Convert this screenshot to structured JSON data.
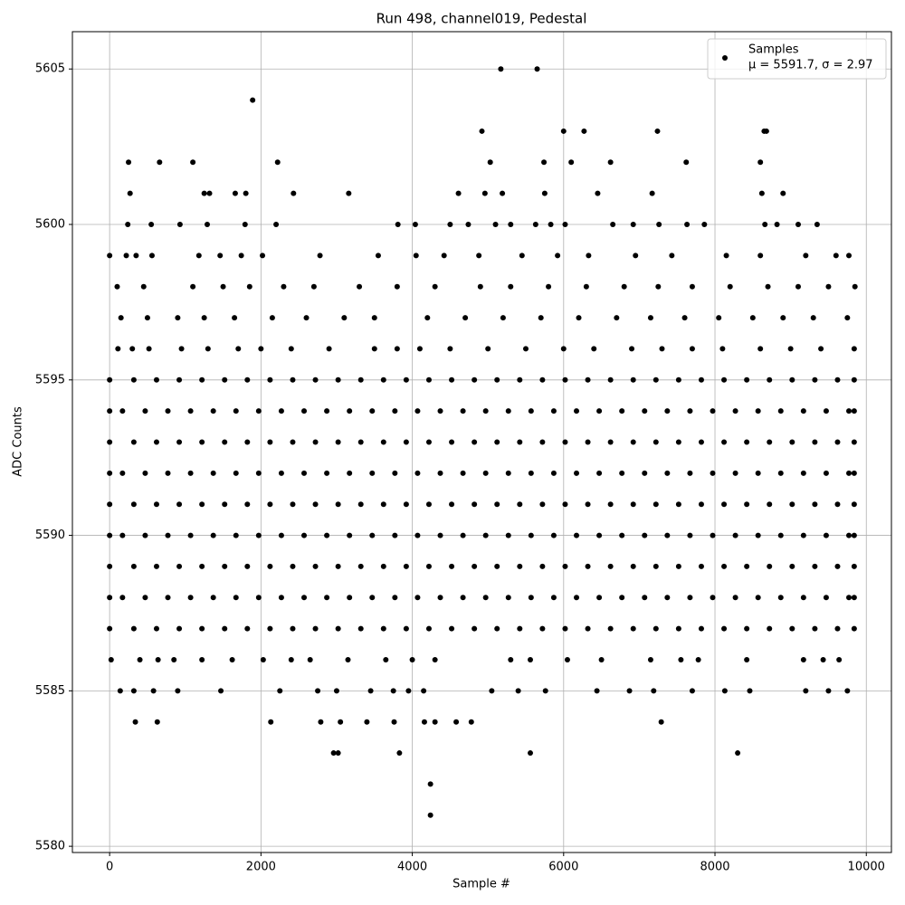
{
  "chart_data": {
    "type": "scatter",
    "title": "Run 498, channel019, Pedestal",
    "xlabel": "Sample #",
    "ylabel": "ADC Counts",
    "xlim": [
      -492,
      10332
    ],
    "ylim": [
      5579.8,
      5606.2
    ],
    "xticks": [
      0,
      2000,
      4000,
      6000,
      8000,
      10000
    ],
    "yticks": [
      5580,
      5585,
      5590,
      5595,
      5600,
      5605
    ],
    "grid": true,
    "legend": "upper right",
    "series": [
      {
        "name": "Samples",
        "stats": "μ = 5591.7, σ = 2.97",
        "color": "#000000",
        "x": [
          0,
          320,
          620,
          920,
          1220,
          1520,
          1820,
          2120,
          2420,
          2720,
          3020,
          3320,
          3620,
          3920,
          4220,
          4520,
          4820,
          5120,
          5420,
          5720,
          6020,
          6320,
          6620,
          6920,
          7220,
          7520,
          7820,
          8120,
          8420,
          8720,
          9020,
          9320,
          9620,
          9840,
          0,
          170,
          470,
          770,
          1070,
          1370,
          1670,
          1970,
          2270,
          2570,
          2870,
          3170,
          3470,
          3770,
          4070,
          4370,
          4670,
          4970,
          5270,
          5570,
          5870,
          6170,
          6470,
          6770,
          7070,
          7370,
          7670,
          7970,
          8270,
          8570,
          8870,
          9170,
          9470,
          9770,
          9840,
          0,
          320,
          620,
          920,
          1220,
          1520,
          1820,
          2120,
          2420,
          2720,
          3020,
          3320,
          3620,
          3920,
          4220,
          4520,
          4820,
          5120,
          5420,
          5720,
          6020,
          6320,
          6620,
          6920,
          7220,
          7520,
          7820,
          8120,
          8420,
          8720,
          9020,
          9320,
          9620,
          9840,
          0,
          170,
          470,
          770,
          1070,
          1370,
          1670,
          1970,
          2270,
          2570,
          2870,
          3170,
          3470,
          3770,
          4070,
          4370,
          4670,
          4970,
          5270,
          5570,
          5870,
          6170,
          6470,
          6770,
          7070,
          7370,
          7670,
          7970,
          8270,
          8570,
          8870,
          9170,
          9470,
          9770,
          9840,
          0,
          320,
          620,
          920,
          1220,
          1520,
          1820,
          2120,
          2420,
          2720,
          3020,
          3320,
          3620,
          3920,
          4220,
          4520,
          4820,
          5120,
          5420,
          5720,
          6020,
          6320,
          6620,
          6920,
          7220,
          7520,
          7820,
          8120,
          8420,
          8720,
          9020,
          9320,
          9620,
          9840,
          0,
          170,
          470,
          770,
          1070,
          1370,
          1670,
          1970,
          2270,
          2570,
          2870,
          3170,
          3470,
          3770,
          4070,
          4370,
          4670,
          4970,
          5270,
          5570,
          5870,
          6170,
          6470,
          6770,
          7070,
          7370,
          7670,
          7970,
          8270,
          8570,
          8870,
          9170,
          9470,
          9770,
          9840,
          0,
          320,
          620,
          920,
          1220,
          1520,
          1820,
          2120,
          2420,
          2720,
          3020,
          3320,
          3620,
          3920,
          4220,
          4520,
          4820,
          5120,
          5420,
          5720,
          6020,
          6320,
          6620,
          6920,
          7220,
          7520,
          7820,
          8120,
          8420,
          8720,
          9020,
          9320,
          9620,
          9840,
          0,
          170,
          470,
          770,
          1070,
          1370,
          1670,
          1970,
          2270,
          2570,
          2870,
          3170,
          3470,
          3770,
          4070,
          4370,
          4670,
          4970,
          5270,
          5570,
          5870,
          6170,
          6470,
          6770,
          7070,
          7370,
          7670,
          7970,
          8270,
          8570,
          8870,
          9170,
          9470,
          9770,
          9840,
          0,
          320,
          620,
          920,
          1220,
          1520,
          1820,
          2120,
          2420,
          2720,
          3020,
          3320,
          3620,
          3920,
          4220,
          4520,
          4820,
          5120,
          5420,
          5720,
          6020,
          6320,
          6620,
          6920,
          7220,
          7520,
          7820,
          8120,
          8420,
          8720,
          9020,
          9320,
          9620,
          9840,
          110,
          300,
          520,
          950,
          1300,
          1700,
          2000,
          2400,
          2900,
          3500,
          3800,
          4100,
          4500,
          5000,
          5500,
          6000,
          6400,
          6900,
          7300,
          7700,
          8100,
          8600,
          9000,
          9400,
          9840,
          150,
          500,
          900,
          1250,
          1650,
          2150,
          2600,
          3100,
          3500,
          4200,
          4700,
          5200,
          5700,
          6200,
          6700,
          7150,
          7600,
          8050,
          8500,
          8900,
          9300,
          9750,
          100,
          450,
          1100,
          1500,
          1850,
          2300,
          2700,
          3300,
          3800,
          4300,
          4900,
          5300,
          5800,
          6300,
          6800,
          7250,
          7700,
          8200,
          8700,
          9100,
          9500,
          9850,
          0,
          220,
          350,
          560,
          1180,
          1460,
          1740,
          2020,
          2780,
          3550,
          4050,
          4420,
          4880,
          5450,
          5920,
          6330,
          6950,
          7430,
          8150,
          8600,
          9200,
          9600,
          9770,
          240,
          550,
          930,
          1290,
          1790,
          2200,
          3810,
          4040,
          4500,
          4740,
          5100,
          5300,
          5630,
          5830,
          6020,
          6650,
          6920,
          7260,
          7630,
          7860,
          8660,
          8820,
          9100,
          9350,
          20,
          400,
          640,
          850,
          1220,
          1620,
          2030,
          2400,
          2650,
          3150,
          3650,
          4000,
          4300,
          5300,
          5560,
          6050,
          6500,
          7150,
          7550,
          7780,
          8420,
          9170,
          9430,
          9640,
          140,
          320,
          580,
          900,
          1470,
          2250,
          2750,
          3000,
          3450,
          3750,
          3950,
          4150,
          5050,
          5400,
          5760,
          6440,
          6870,
          7190,
          7700,
          8130,
          8460,
          9200,
          9500,
          9750,
          250,
          270,
          660,
          1100,
          1890,
          2220,
          5170,
          5650,
          4920,
          6000,
          6270,
          7240,
          8650,
          8680,
          4240,
          4240,
          3830,
          2960,
          3020,
          5560,
          8300,
          340,
          630,
          2130,
          2790,
          3050,
          3400,
          3760,
          4160,
          4300,
          4580,
          4780,
          7290,
          5030,
          5740,
          6100,
          6620,
          7620,
          8600,
          1250,
          1320,
          1660,
          1800,
          2430,
          3160,
          4610,
          4960,
          5190,
          5750,
          6450,
          7170,
          8620,
          8900
        ],
        "values": [
          5595,
          5595,
          5595,
          5595,
          5595,
          5595,
          5595,
          5595,
          5595,
          5595,
          5595,
          5595,
          5595,
          5595,
          5595,
          5595,
          5595,
          5595,
          5595,
          5595,
          5595,
          5595,
          5595,
          5595,
          5595,
          5595,
          5595,
          5595,
          5595,
          5595,
          5595,
          5595,
          5595,
          5595,
          5594,
          5594,
          5594,
          5594,
          5594,
          5594,
          5594,
          5594,
          5594,
          5594,
          5594,
          5594,
          5594,
          5594,
          5594,
          5594,
          5594,
          5594,
          5594,
          5594,
          5594,
          5594,
          5594,
          5594,
          5594,
          5594,
          5594,
          5594,
          5594,
          5594,
          5594,
          5594,
          5594,
          5594,
          5594,
          5593,
          5593,
          5593,
          5593,
          5593,
          5593,
          5593,
          5593,
          5593,
          5593,
          5593,
          5593,
          5593,
          5593,
          5593,
          5593,
          5593,
          5593,
          5593,
          5593,
          5593,
          5593,
          5593,
          5593,
          5593,
          5593,
          5593,
          5593,
          5593,
          5593,
          5593,
          5593,
          5593,
          5593,
          5592,
          5592,
          5592,
          5592,
          5592,
          5592,
          5592,
          5592,
          5592,
          5592,
          5592,
          5592,
          5592,
          5592,
          5592,
          5592,
          5592,
          5592,
          5592,
          5592,
          5592,
          5592,
          5592,
          5592,
          5592,
          5592,
          5592,
          5592,
          5592,
          5592,
          5592,
          5592,
          5592,
          5592,
          5592,
          5591,
          5591,
          5591,
          5591,
          5591,
          5591,
          5591,
          5591,
          5591,
          5591,
          5591,
          5591,
          5591,
          5591,
          5591,
          5591,
          5591,
          5591,
          5591,
          5591,
          5591,
          5591,
          5591,
          5591,
          5591,
          5591,
          5591,
          5591,
          5591,
          5591,
          5591,
          5591,
          5591,
          5591,
          5590,
          5590,
          5590,
          5590,
          5590,
          5590,
          5590,
          5590,
          5590,
          5590,
          5590,
          5590,
          5590,
          5590,
          5590,
          5590,
          5590,
          5590,
          5590,
          5590,
          5590,
          5590,
          5590,
          5590,
          5590,
          5590,
          5590,
          5590,
          5590,
          5590,
          5590,
          5590,
          5590,
          5590,
          5590,
          5589,
          5589,
          5589,
          5589,
          5589,
          5589,
          5589,
          5589,
          5589,
          5589,
          5589,
          5589,
          5589,
          5589,
          5589,
          5589,
          5589,
          5589,
          5589,
          5589,
          5589,
          5589,
          5589,
          5589,
          5589,
          5589,
          5589,
          5589,
          5589,
          5589,
          5589,
          5589,
          5589,
          5589,
          5588,
          5588,
          5588,
          5588,
          5588,
          5588,
          5588,
          5588,
          5588,
          5588,
          5588,
          5588,
          5588,
          5588,
          5588,
          5588,
          5588,
          5588,
          5588,
          5588,
          5588,
          5588,
          5588,
          5588,
          5588,
          5588,
          5588,
          5588,
          5588,
          5588,
          5588,
          5588,
          5588,
          5588,
          5588,
          5587,
          5587,
          5587,
          5587,
          5587,
          5587,
          5587,
          5587,
          5587,
          5587,
          5587,
          5587,
          5587,
          5587,
          5587,
          5587,
          5587,
          5587,
          5587,
          5587,
          5587,
          5587,
          5587,
          5587,
          5587,
          5587,
          5587,
          5587,
          5587,
          5587,
          5587,
          5587,
          5587,
          5587,
          5596,
          5596,
          5596,
          5596,
          5596,
          5596,
          5596,
          5596,
          5596,
          5596,
          5596,
          5596,
          5596,
          5596,
          5596,
          5596,
          5596,
          5596,
          5596,
          5596,
          5596,
          5596,
          5596,
          5596,
          5596,
          5597,
          5597,
          5597,
          5597,
          5597,
          5597,
          5597,
          5597,
          5597,
          5597,
          5597,
          5597,
          5597,
          5597,
          5597,
          5597,
          5597,
          5597,
          5597,
          5597,
          5597,
          5597,
          5598,
          5598,
          5598,
          5598,
          5598,
          5598,
          5598,
          5598,
          5598,
          5598,
          5598,
          5598,
          5598,
          5598,
          5598,
          5598,
          5598,
          5598,
          5598,
          5598,
          5598,
          5598,
          5599,
          5599,
          5599,
          5599,
          5599,
          5599,
          5599,
          5599,
          5599,
          5599,
          5599,
          5599,
          5599,
          5599,
          5599,
          5599,
          5599,
          5599,
          5599,
          5599,
          5599,
          5599,
          5599,
          5600,
          5600,
          5600,
          5600,
          5600,
          5600,
          5600,
          5600,
          5600,
          5600,
          5600,
          5600,
          5600,
          5600,
          5600,
          5600,
          5600,
          5600,
          5600,
          5600,
          5600,
          5600,
          5600,
          5600,
          5586,
          5586,
          5586,
          5586,
          5586,
          5586,
          5586,
          5586,
          5586,
          5586,
          5586,
          5586,
          5586,
          5586,
          5586,
          5586,
          5586,
          5586,
          5586,
          5586,
          5586,
          5586,
          5586,
          5586,
          5585,
          5585,
          5585,
          5585,
          5585,
          5585,
          5585,
          5585,
          5585,
          5585,
          5585,
          5585,
          5585,
          5585,
          5585,
          5585,
          5585,
          5585,
          5585,
          5585,
          5585,
          5585,
          5585,
          5585,
          5602,
          5601,
          5602,
          5602,
          5604,
          5602,
          5605,
          5605,
          5603,
          5603,
          5603,
          5603,
          5603,
          5603,
          5582,
          5581,
          5583,
          5583,
          5583,
          5583,
          5583,
          5584,
          5584,
          5584,
          5584,
          5584,
          5584,
          5584,
          5584,
          5584,
          5584,
          5584,
          5584,
          5602,
          5602,
          5602,
          5602,
          5602,
          5602,
          5601,
          5601,
          5601,
          5601,
          5601,
          5601,
          5601,
          5601,
          5601,
          5601,
          5601,
          5601,
          5601,
          5601
        ]
      }
    ]
  }
}
